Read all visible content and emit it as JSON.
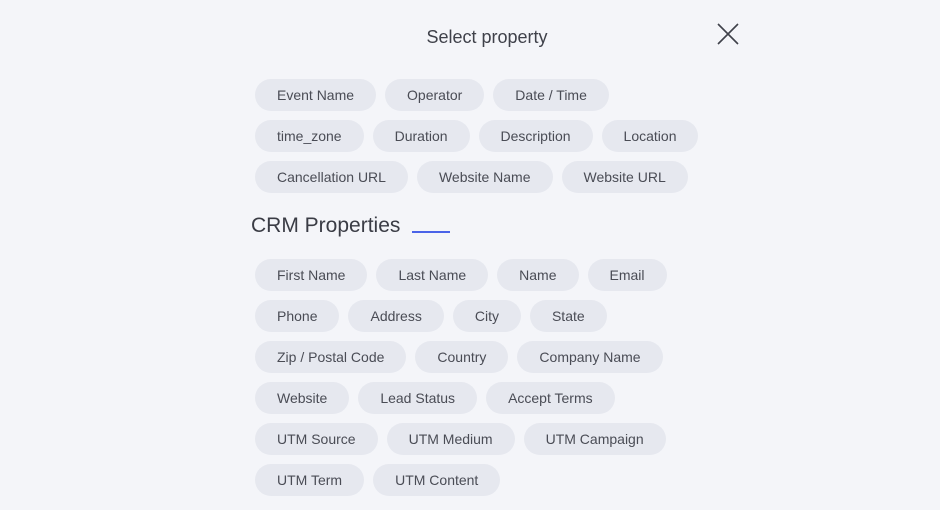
{
  "header": {
    "title": "Select property",
    "close_icon": "close-icon"
  },
  "event_properties": {
    "rows": [
      [
        "Event Name",
        "Operator",
        "Date / Time"
      ],
      [
        "time_zone",
        "Duration",
        "Description",
        "Location"
      ],
      [
        "Cancellation URL",
        "Website Name",
        "Website URL"
      ]
    ]
  },
  "crm": {
    "title": "CRM Properties",
    "accent_color": "#4a63e8",
    "rows": [
      [
        "First Name",
        "Last Name",
        "Name",
        "Email"
      ],
      [
        "Phone",
        "Address",
        "City",
        "State"
      ],
      [
        "Zip / Postal Code",
        "Country",
        "Company Name"
      ],
      [
        "Website",
        "Lead Status",
        "Accept Terms"
      ],
      [
        "UTM Source",
        "UTM Medium",
        "UTM Campaign"
      ],
      [
        "UTM Term",
        "UTM Content"
      ]
    ]
  }
}
